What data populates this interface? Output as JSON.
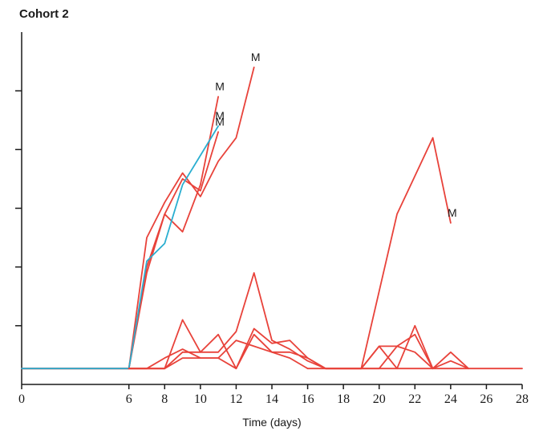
{
  "chart_data": {
    "type": "line",
    "title": "Cohort 2",
    "xlabel": "Time (days)",
    "ylabel": "",
    "xlim": [
      0,
      28
    ],
    "ylim": [
      0,
      6
    ],
    "x_ticks": [
      0,
      6,
      8,
      10,
      12,
      14,
      16,
      18,
      20,
      22,
      24,
      26,
      28
    ],
    "y_ticks": [
      1,
      2,
      3,
      4,
      5
    ],
    "colors": {
      "red": "#e8423a",
      "blue": "#2aaed0",
      "axis": "#1a1a1a"
    },
    "series": [
      {
        "color": "#e8423a",
        "points": [
          [
            0,
            0.27
          ],
          [
            6,
            0.27
          ],
          [
            7,
            2.5
          ],
          [
            8,
            3.1
          ],
          [
            9,
            3.6
          ],
          [
            10,
            3.2
          ],
          [
            11,
            3.8
          ],
          [
            12,
            4.2
          ],
          [
            13,
            5.4
          ]
        ],
        "end_label": "M"
      },
      {
        "color": "#e8423a",
        "points": [
          [
            0,
            0.27
          ],
          [
            6,
            0.27
          ],
          [
            7,
            1.9
          ],
          [
            8,
            2.9
          ],
          [
            9,
            2.6
          ],
          [
            10,
            3.4
          ],
          [
            11,
            4.9
          ]
        ],
        "end_label": "M"
      },
      {
        "color": "#e8423a",
        "points": [
          [
            0,
            0.27
          ],
          [
            6,
            0.27
          ],
          [
            7,
            2.0
          ],
          [
            8,
            2.9
          ],
          [
            9,
            3.5
          ],
          [
            10,
            3.3
          ],
          [
            11,
            4.3
          ]
        ],
        "end_label": "M"
      },
      {
        "color": "#2aaed0",
        "points": [
          [
            0,
            0.27
          ],
          [
            6,
            0.27
          ],
          [
            7,
            2.1
          ],
          [
            8,
            2.4
          ],
          [
            9,
            3.4
          ],
          [
            10,
            3.9
          ],
          [
            11,
            4.4
          ]
        ],
        "end_label": "M"
      },
      {
        "color": "#e8423a",
        "points": [
          [
            19,
            0.27
          ],
          [
            21,
            2.9
          ],
          [
            23,
            4.2
          ],
          [
            24,
            2.75
          ]
        ],
        "end_label": "M"
      },
      {
        "color": "#e8423a",
        "points": [
          [
            6,
            0.27
          ],
          [
            7,
            0.27
          ],
          [
            8,
            0.27
          ],
          [
            9,
            1.1
          ],
          [
            10,
            0.55
          ],
          [
            11,
            0.55
          ],
          [
            12,
            0.9
          ],
          [
            13,
            1.9
          ],
          [
            14,
            0.75
          ],
          [
            15,
            0.6
          ],
          [
            16,
            0.4
          ],
          [
            17,
            0.27
          ],
          [
            19,
            0.27
          ],
          [
            20,
            0.65
          ],
          [
            21,
            0.27
          ],
          [
            22,
            1.0
          ],
          [
            23,
            0.27
          ],
          [
            24,
            0.55
          ],
          [
            25,
            0.27
          ]
        ]
      },
      {
        "color": "#e8423a",
        "points": [
          [
            6,
            0.27
          ],
          [
            8,
            0.27
          ],
          [
            9,
            0.55
          ],
          [
            10,
            0.55
          ],
          [
            11,
            0.85
          ],
          [
            12,
            0.27
          ],
          [
            13,
            0.95
          ],
          [
            14,
            0.7
          ],
          [
            15,
            0.75
          ],
          [
            16,
            0.45
          ],
          [
            17,
            0.27
          ],
          [
            20,
            0.27
          ],
          [
            21,
            0.65
          ],
          [
            22,
            0.85
          ],
          [
            23,
            0.27
          ],
          [
            24,
            0.4
          ],
          [
            25,
            0.27
          ]
        ]
      },
      {
        "color": "#e8423a",
        "points": [
          [
            6,
            0.27
          ],
          [
            7,
            0.27
          ],
          [
            8,
            0.45
          ],
          [
            9,
            0.6
          ],
          [
            10,
            0.45
          ],
          [
            11,
            0.45
          ],
          [
            12,
            0.75
          ],
          [
            13,
            0.65
          ],
          [
            14,
            0.55
          ],
          [
            15,
            0.55
          ],
          [
            16,
            0.45
          ],
          [
            17,
            0.27
          ],
          [
            19,
            0.27
          ],
          [
            20,
            0.65
          ],
          [
            21,
            0.65
          ],
          [
            22,
            0.55
          ],
          [
            23,
            0.27
          ]
        ]
      },
      {
        "color": "#e8423a",
        "points": [
          [
            6,
            0.27
          ],
          [
            7,
            0.27
          ],
          [
            8,
            0.27
          ],
          [
            9,
            0.45
          ],
          [
            10,
            0.45
          ],
          [
            11,
            0.45
          ],
          [
            12,
            0.27
          ],
          [
            13,
            0.85
          ],
          [
            14,
            0.55
          ],
          [
            15,
            0.45
          ],
          [
            16,
            0.27
          ],
          [
            24,
            0.27
          ],
          [
            28,
            0.27
          ]
        ]
      }
    ]
  }
}
